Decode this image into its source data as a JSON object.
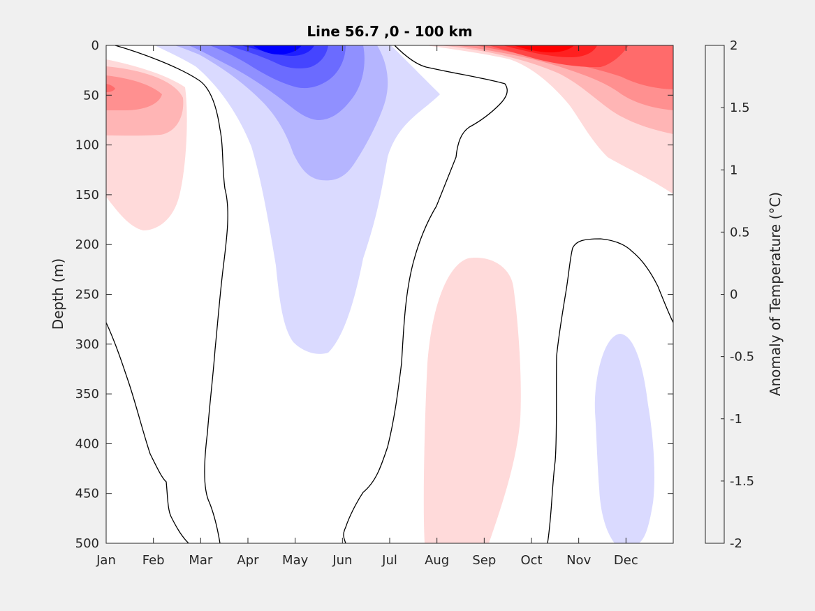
{
  "chart_data": {
    "type": "heatmap",
    "title": "Line 56.7 ,0 - 100 km",
    "ylabel": "Depth (m)",
    "colorbar_label": "Anomaly of Temperature (°C)",
    "x_categories": [
      "Jan",
      "Feb",
      "Mar",
      "Apr",
      "May",
      "Jun",
      "Jul",
      "Aug",
      "Sep",
      "Oct",
      "Nov",
      "Dec"
    ],
    "xlim": [
      1,
      13
    ],
    "ylim": [
      0,
      500
    ],
    "y_reversed": true,
    "y_ticks": [
      0,
      50,
      100,
      150,
      200,
      250,
      300,
      350,
      400,
      450,
      500
    ],
    "colorbar": {
      "clim": [
        -2,
        2
      ],
      "ticks": [
        2,
        1.5,
        1,
        0.5,
        0,
        -0.5,
        -1,
        -1.5,
        -2
      ],
      "tick_labels": [
        "2",
        "1.5",
        "1",
        "0.5",
        "0",
        "-0.5",
        "-1",
        "-1.5",
        "-2"
      ],
      "levels": [
        {
          "range": [
            1.75,
            2.0
          ],
          "color": "#ff0000"
        },
        {
          "range": [
            1.5,
            1.75
          ],
          "color": "#ff2020"
        },
        {
          "range": [
            1.25,
            1.5
          ],
          "color": "#ff4545"
        },
        {
          "range": [
            1.0,
            1.25
          ],
          "color": "#ff6b6b"
        },
        {
          "range": [
            0.75,
            1.0
          ],
          "color": "#ff9090"
        },
        {
          "range": [
            0.5,
            0.75
          ],
          "color": "#ffb5b5"
        },
        {
          "range": [
            0.25,
            0.5
          ],
          "color": "#ffdada"
        },
        {
          "range": [
            0,
            0.25
          ],
          "color": "#ffffff"
        },
        {
          "range": [
            -0.25,
            0
          ],
          "color": "#ffffff"
        },
        {
          "range": [
            -0.5,
            -0.25
          ],
          "color": "#dadaff"
        },
        {
          "range": [
            -0.75,
            -0.5
          ],
          "color": "#b5b5ff"
        },
        {
          "range": [
            -1.0,
            -0.75
          ],
          "color": "#9090ff"
        },
        {
          "range": [
            -1.25,
            -1.0
          ],
          "color": "#6b6bff"
        },
        {
          "range": [
            -1.5,
            -1.25
          ],
          "color": "#4545ff"
        },
        {
          "range": [
            -1.75,
            -1.5
          ],
          "color": "#2020ff"
        },
        {
          "range": [
            -2.0,
            -1.75
          ],
          "color": "#0000ff"
        }
      ]
    },
    "anomaly_features": [
      {
        "name": "winter warm core",
        "month_center": 1.5,
        "depth_center": 50,
        "min_or_max": 0.75
      },
      {
        "name": "spring cold core",
        "month_center": 4.7,
        "depth_center": 5,
        "min_or_max": -1.75
      },
      {
        "name": "late summer warm column",
        "month_center": 8.7,
        "depth_center": 380,
        "min_or_max": 0.25
      },
      {
        "name": "autumn warm surface core",
        "month_center": 10.3,
        "depth_center": 5,
        "min_or_max": 1.75
      },
      {
        "name": "december deep cold patch",
        "month_center": 11.5,
        "depth_center": 430,
        "min_or_max": -0.25
      }
    ]
  }
}
